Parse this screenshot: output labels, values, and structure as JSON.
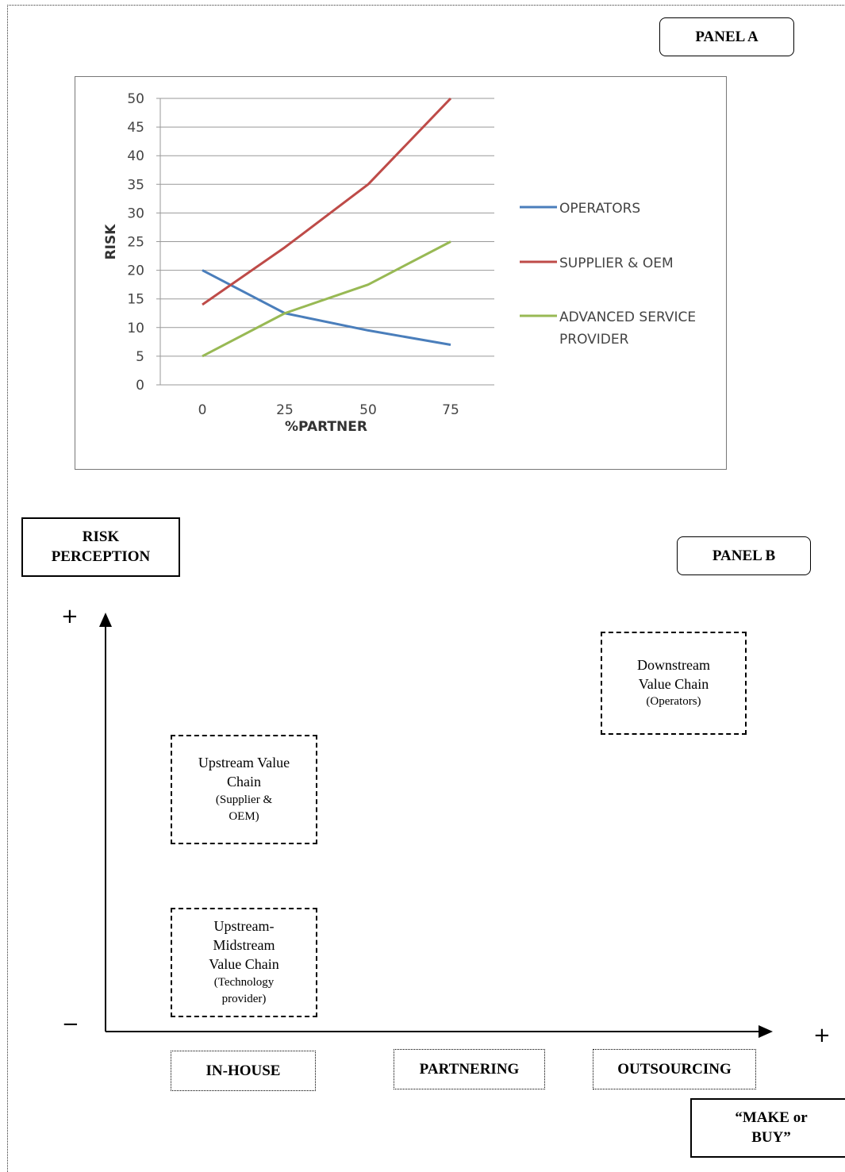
{
  "panel_a": {
    "label": "PANEL A"
  },
  "panel_b": {
    "label": "PANEL B"
  },
  "chart_data": {
    "type": "line",
    "title": "",
    "xlabel": "%PARTNER",
    "ylabel": "RISK",
    "x": [
      0,
      25,
      50,
      75
    ],
    "ylim": [
      0,
      50
    ],
    "yticks": [
      "0",
      "5",
      "10",
      "15",
      "20",
      "25",
      "30",
      "35",
      "40",
      "45",
      "50"
    ],
    "xticks": [
      "0",
      "25",
      "50",
      "75"
    ],
    "grid": true,
    "legend_position": "right",
    "series": [
      {
        "name": "OPERATORS",
        "values": [
          20,
          12.5,
          9.5,
          7
        ],
        "color": "#4a7ebb"
      },
      {
        "name": "SUPPLIER & OEM",
        "values": [
          14,
          24,
          35,
          50
        ],
        "color": "#be4b48"
      },
      {
        "name": "ADVANCED SERVICE PROVIDER",
        "legend_lines": [
          "ADVANCED SERVICE",
          "PROVIDER"
        ],
        "values": [
          5,
          12.5,
          17.5,
          25
        ],
        "color": "#98b954"
      }
    ]
  },
  "diagram": {
    "y_axis_label_lines": [
      "RISK",
      "PERCEPTION"
    ],
    "x_axis_label_lines": [
      "“MAKE or",
      "BUY”"
    ],
    "y_plus": "+",
    "y_minus": "−",
    "x_plus": "+",
    "boxes": {
      "downstream": {
        "lines": [
          "Downstream",
          "Value Chain"
        ],
        "sub": [
          "(Operators)"
        ]
      },
      "upstream": {
        "lines": [
          "Upstream Value",
          "Chain"
        ],
        "sub": [
          "(Supplier &",
          "OEM)"
        ]
      },
      "midstream": {
        "lines": [
          "Upstream-",
          "Midstream",
          "Value Chain"
        ],
        "sub": [
          "(Technology",
          "provider)"
        ]
      }
    },
    "categories": [
      "IN-HOUSE",
      "PARTNERING",
      "OUTSOURCING"
    ]
  }
}
